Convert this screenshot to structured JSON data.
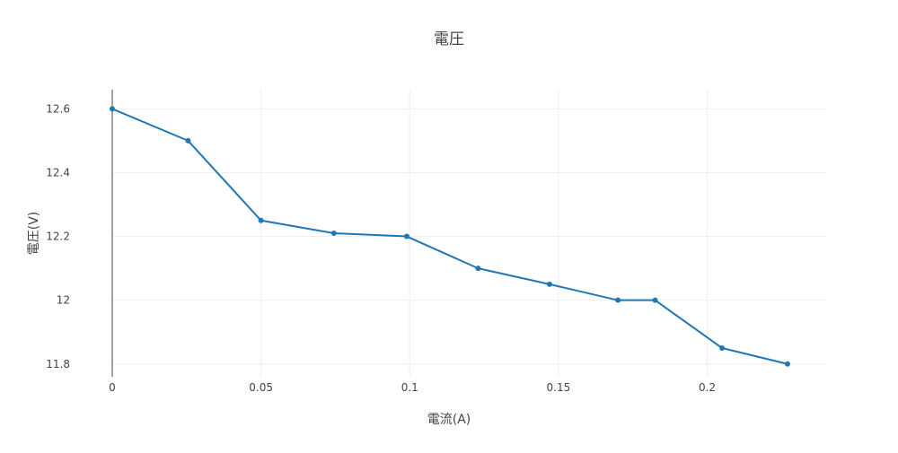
{
  "chart_data": {
    "type": "line",
    "title": "電圧",
    "xlabel": "電流(A)",
    "ylabel": "電圧(V)",
    "xlim": [
      0,
      0.24
    ],
    "ylim": [
      11.76,
      12.66
    ],
    "xticks": [
      0,
      0.05,
      0.1,
      0.15,
      0.2
    ],
    "yticks": [
      11.8,
      12,
      12.2,
      12.4,
      12.6
    ],
    "xtick_labels": [
      "0",
      "0.05",
      "0.1",
      "0.15",
      "0.2"
    ],
    "ytick_labels": [
      "11.8",
      "12",
      "12.2",
      "12.4",
      "12.6"
    ],
    "grid": true,
    "legend": false,
    "series": [
      {
        "color": "#1f77b4",
        "mode": "lines+markers",
        "x": [
          0,
          0.0255,
          0.05,
          0.0745,
          0.099,
          0.123,
          0.147,
          0.17,
          0.1825,
          0.205,
          0.227
        ],
        "y": [
          12.6,
          12.5,
          12.25,
          12.21,
          12.2,
          12.1,
          12.05,
          12.0,
          12.0,
          11.85,
          11.8
        ]
      }
    ]
  }
}
